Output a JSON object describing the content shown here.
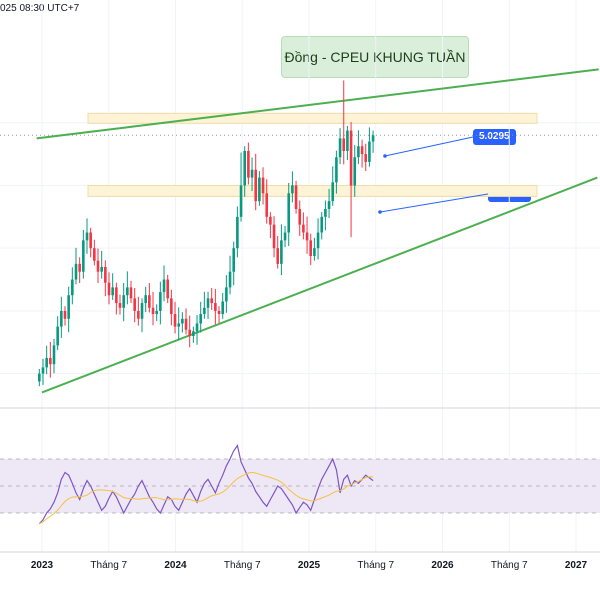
{
  "header": {
    "timestamp": "025 08:30 UTC+7"
  },
  "annotations": {
    "title": "Đồng - CPEU KHUNG TUẦN",
    "level_upper": "5.0295",
    "level_lower": "4.5770"
  },
  "colors": {
    "up": "#089981",
    "down": "#f23645",
    "trendline": "#4caf50",
    "zone_fill": "#fdf3d6",
    "zone_border": "#f0dca8",
    "rsi_line": "#7e57c2",
    "rsi_ma": "#f5c242",
    "rsi_band": "#ede7f6",
    "callout": "#2962ff"
  },
  "chart_data": [
    {
      "type": "candlestick",
      "title": "Đồng - CPEU KHUNG TUẦN",
      "timeframe": "weekly",
      "x_ticks": [
        {
          "label": "2023",
          "t": 0.0,
          "major": true
        },
        {
          "label": "Tháng 7",
          "t": 0.5,
          "major": false
        },
        {
          "label": "2024",
          "t": 1.0,
          "major": true
        },
        {
          "label": "Tháng 7",
          "t": 1.5,
          "major": false
        },
        {
          "label": "2025",
          "t": 2.0,
          "major": true
        },
        {
          "label": "Tháng 7",
          "t": 2.5,
          "major": false
        },
        {
          "label": "2026",
          "t": 3.0,
          "major": true
        },
        {
          "label": "Tháng 7",
          "t": 3.5,
          "major": false
        },
        {
          "label": "2027",
          "t": 4.0,
          "major": true
        }
      ],
      "ylim": [
        3.2,
        5.4
      ],
      "close_series": [
        3.4,
        3.44,
        3.5,
        3.46,
        3.58,
        3.7,
        3.8,
        3.75,
        3.9,
        4.0,
        4.1,
        4.05,
        4.25,
        4.3,
        4.2,
        4.12,
        4.05,
        4.08,
        3.98,
        3.9,
        3.95,
        3.85,
        3.82,
        3.9,
        3.95,
        3.88,
        3.8,
        3.75,
        3.85,
        3.9,
        3.82,
        3.78,
        3.8,
        3.92,
        4.0,
        3.88,
        3.78,
        3.7,
        3.72,
        3.75,
        3.68,
        3.64,
        3.67,
        3.72,
        3.78,
        3.82,
        3.88,
        3.85,
        3.8,
        3.78,
        3.86,
        3.95,
        4.05,
        4.2,
        4.4,
        4.6,
        4.82,
        4.65,
        4.7,
        4.5,
        4.65,
        4.55,
        4.4,
        4.35,
        4.2,
        4.1,
        4.25,
        4.3,
        4.55,
        4.6,
        4.45,
        4.35,
        4.3,
        4.25,
        4.15,
        4.2,
        4.3,
        4.4,
        4.45,
        4.5,
        4.62,
        4.78,
        4.9,
        4.82,
        4.95,
        4.6,
        4.78,
        4.85,
        4.8,
        4.75,
        4.88,
        4.92
      ],
      "levels": [
        5.0295,
        4.577
      ],
      "zones": [
        {
          "low": 5.0,
          "high": 5.06
        },
        {
          "low": 4.53,
          "high": 4.6
        }
      ],
      "trendlines": [
        {
          "from": [
            -0.04,
            4.9
          ],
          "to": [
            4.17,
            5.34
          ]
        },
        {
          "from": [
            0.0,
            3.28
          ],
          "to": [
            4.16,
            4.65
          ]
        }
      ]
    },
    {
      "type": "line",
      "panel": "oscillator",
      "ylim": [
        10,
        90
      ],
      "band": [
        30,
        70
      ],
      "series_main": [
        22,
        25,
        30,
        33,
        38,
        45,
        55,
        60,
        58,
        52,
        45,
        40,
        48,
        54,
        50,
        44,
        38,
        32,
        35,
        41,
        46,
        42,
        36,
        30,
        35,
        40,
        44,
        50,
        54,
        48,
        42,
        38,
        33,
        30,
        36,
        42,
        40,
        35,
        32,
        38,
        44,
        48,
        43,
        38,
        46,
        52,
        55,
        50,
        45,
        52,
        58,
        65,
        70,
        76,
        80,
        68,
        62,
        56,
        52,
        46,
        42,
        38,
        35,
        40,
        45,
        50,
        48,
        44,
        40,
        36,
        30,
        34,
        38,
        36,
        32,
        40,
        48,
        55,
        60,
        65,
        70,
        62,
        45,
        55,
        58,
        50,
        54,
        52,
        55,
        58,
        56,
        54
      ]
    }
  ]
}
